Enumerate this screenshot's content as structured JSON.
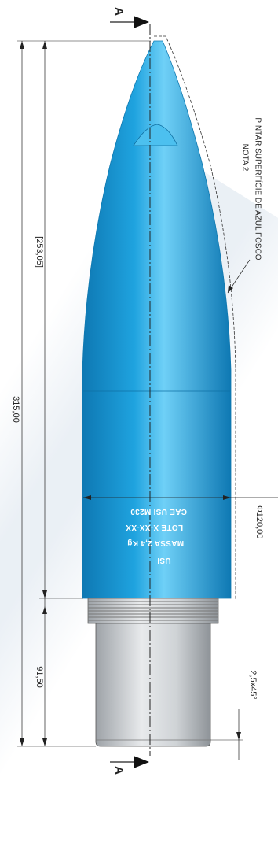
{
  "drawing": {
    "section_mark": "A",
    "dimensions": {
      "overall_length": "315,00",
      "body_length": "[253,05]",
      "base_length": "91,50",
      "chamfer": "2,5x45°",
      "diameter": "Φ120,00"
    },
    "note": {
      "number": "NOTA 2",
      "text": "PINTAR SUPERFÍCIE DE AZUL FOSCO"
    },
    "markings": {
      "line1": "CAE USI M230",
      "line2": "LOTE X-XX-XX",
      "line3": "MASSA 2,4 Kg",
      "line4": "USI"
    },
    "colors": {
      "body": "#1fa3df",
      "body_light": "#6fd0f7",
      "body_dark": "#0e78b3",
      "metal": "#c7cbcf",
      "line": "#222222"
    }
  }
}
